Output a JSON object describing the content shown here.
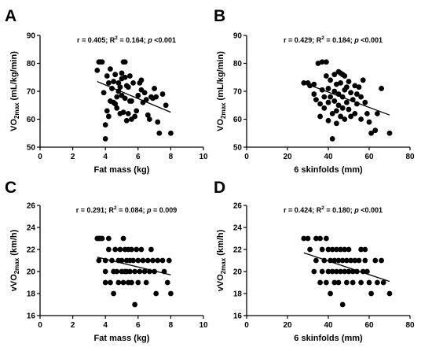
{
  "chart_data": [
    {
      "panel_label": "A",
      "type": "scatter",
      "xlabel": "Fat mass (kg)",
      "ylabel_main": "VO",
      "ylabel_sub": "2max",
      "ylabel_unit": " (mL/kg/min)",
      "annotation": {
        "r": "r = 0.405; R",
        "sup": "2",
        "mid": " = 0.164; ",
        "p": "p",
        "end": " <0.001"
      },
      "xlim": [
        0,
        10
      ],
      "ylim": [
        50,
        90
      ],
      "xticks": [
        "0",
        "2",
        "4",
        "6",
        "8",
        "10"
      ],
      "yticks": [
        "50",
        "60",
        "70",
        "80",
        "90"
      ],
      "trend_line": {
        "x": [
          3.5,
          8.0
        ],
        "y": [
          73.5,
          62.5
        ]
      },
      "points": [
        {
          "x": 3.5,
          "y": 77.5
        },
        {
          "x": 3.6,
          "y": 80.5
        },
        {
          "x": 3.7,
          "y": 80.5
        },
        {
          "x": 3.8,
          "y": 80.5
        },
        {
          "x": 3.9,
          "y": 69.5
        },
        {
          "x": 4.0,
          "y": 58.0
        },
        {
          "x": 4.0,
          "y": 53.0
        },
        {
          "x": 4.1,
          "y": 75.5
        },
        {
          "x": 4.1,
          "y": 63.0
        },
        {
          "x": 4.2,
          "y": 61.0
        },
        {
          "x": 4.2,
          "y": 73.0
        },
        {
          "x": 4.3,
          "y": 66.5
        },
        {
          "x": 4.3,
          "y": 78.0
        },
        {
          "x": 4.4,
          "y": 71.0
        },
        {
          "x": 4.5,
          "y": 73.5
        },
        {
          "x": 4.5,
          "y": 66.0
        },
        {
          "x": 4.6,
          "y": 65.5
        },
        {
          "x": 4.6,
          "y": 76.0
        },
        {
          "x": 4.7,
          "y": 68.0
        },
        {
          "x": 4.7,
          "y": 64.0
        },
        {
          "x": 4.8,
          "y": 70.0
        },
        {
          "x": 4.8,
          "y": 73.0
        },
        {
          "x": 4.9,
          "y": 71.5
        },
        {
          "x": 4.9,
          "y": 62.0
        },
        {
          "x": 5.0,
          "y": 74.5
        },
        {
          "x": 5.0,
          "y": 68.5
        },
        {
          "x": 5.0,
          "y": 76.5
        },
        {
          "x": 5.1,
          "y": 80.5
        },
        {
          "x": 5.1,
          "y": 62.5
        },
        {
          "x": 5.2,
          "y": 75.0
        },
        {
          "x": 5.2,
          "y": 67.5
        },
        {
          "x": 5.2,
          "y": 80.5
        },
        {
          "x": 5.3,
          "y": 72.0
        },
        {
          "x": 5.3,
          "y": 59.5
        },
        {
          "x": 5.4,
          "y": 71.5
        },
        {
          "x": 5.4,
          "y": 62.0
        },
        {
          "x": 5.5,
          "y": 75.5
        },
        {
          "x": 5.5,
          "y": 66.5
        },
        {
          "x": 5.6,
          "y": 66.5
        },
        {
          "x": 5.6,
          "y": 60.0
        },
        {
          "x": 5.7,
          "y": 73.0
        },
        {
          "x": 5.8,
          "y": 61.0
        },
        {
          "x": 5.9,
          "y": 63.0
        },
        {
          "x": 6.0,
          "y": 68.5
        },
        {
          "x": 6.1,
          "y": 73.0
        },
        {
          "x": 6.2,
          "y": 74.0
        },
        {
          "x": 6.2,
          "y": 70.5
        },
        {
          "x": 6.3,
          "y": 66.0
        },
        {
          "x": 6.4,
          "y": 69.5
        },
        {
          "x": 6.5,
          "y": 67.0
        },
        {
          "x": 6.6,
          "y": 61.5
        },
        {
          "x": 6.7,
          "y": 60.0
        },
        {
          "x": 6.8,
          "y": 68.0
        },
        {
          "x": 6.9,
          "y": 67.5
        },
        {
          "x": 7.0,
          "y": 71.0
        },
        {
          "x": 7.1,
          "y": 68.0
        },
        {
          "x": 7.2,
          "y": 59.0
        },
        {
          "x": 7.3,
          "y": 55.0
        },
        {
          "x": 7.5,
          "y": 69.0
        },
        {
          "x": 7.7,
          "y": 65.0
        },
        {
          "x": 8.0,
          "y": 55.0
        }
      ]
    },
    {
      "panel_label": "B",
      "type": "scatter",
      "xlabel": "6 skinfolds (mm)",
      "ylabel_main": "VO",
      "ylabel_sub": "2max",
      "ylabel_unit": " (mL/kg/min)",
      "annotation": {
        "r": "r = 0.429; R",
        "sup": "2",
        "mid": " = 0.184; ",
        "p": "p",
        "end": " <0.001"
      },
      "xlim": [
        0,
        80
      ],
      "ylim": [
        50,
        90
      ],
      "xticks": [
        "0",
        "20",
        "40",
        "60",
        "80"
      ],
      "yticks": [
        "50",
        "60",
        "70",
        "80",
        "90"
      ],
      "trend_line": {
        "x": [
          28,
          70
        ],
        "y": [
          73.0,
          61.5
        ]
      },
      "points": [
        {
          "x": 28,
          "y": 73.0
        },
        {
          "x": 30,
          "y": 73.0
        },
        {
          "x": 31,
          "y": 72.0
        },
        {
          "x": 33,
          "y": 69.0
        },
        {
          "x": 33,
          "y": 72.5
        },
        {
          "x": 34,
          "y": 67.0
        },
        {
          "x": 35,
          "y": 80.0
        },
        {
          "x": 36,
          "y": 65.5
        },
        {
          "x": 36,
          "y": 61.0
        },
        {
          "x": 37,
          "y": 80.5
        },
        {
          "x": 37,
          "y": 70.5
        },
        {
          "x": 38,
          "y": 68.0
        },
        {
          "x": 38,
          "y": 64.0
        },
        {
          "x": 39,
          "y": 80.5
        },
        {
          "x": 39,
          "y": 75.5
        },
        {
          "x": 40,
          "y": 71.0
        },
        {
          "x": 40,
          "y": 66.0
        },
        {
          "x": 40,
          "y": 59.5
        },
        {
          "x": 41,
          "y": 68.0
        },
        {
          "x": 41,
          "y": 74.0
        },
        {
          "x": 42,
          "y": 62.0
        },
        {
          "x": 42,
          "y": 53.0
        },
        {
          "x": 43,
          "y": 70.0
        },
        {
          "x": 43,
          "y": 76.0
        },
        {
          "x": 43,
          "y": 66.5
        },
        {
          "x": 44,
          "y": 72.5
        },
        {
          "x": 44,
          "y": 63.0
        },
        {
          "x": 44,
          "y": 58.5
        },
        {
          "x": 45,
          "y": 77.0
        },
        {
          "x": 45,
          "y": 69.0
        },
        {
          "x": 45,
          "y": 65.0
        },
        {
          "x": 46,
          "y": 73.0
        },
        {
          "x": 46,
          "y": 61.0
        },
        {
          "x": 46,
          "y": 76.5
        },
        {
          "x": 47,
          "y": 76.0
        },
        {
          "x": 47,
          "y": 68.0
        },
        {
          "x": 47,
          "y": 64.0
        },
        {
          "x": 48,
          "y": 75.5
        },
        {
          "x": 48,
          "y": 70.5
        },
        {
          "x": 48,
          "y": 60.0
        },
        {
          "x": 49,
          "y": 71.5
        },
        {
          "x": 49,
          "y": 66.0
        },
        {
          "x": 50,
          "y": 73.5
        },
        {
          "x": 50,
          "y": 63.5
        },
        {
          "x": 51,
          "y": 69.5
        },
        {
          "x": 51,
          "y": 61.0
        },
        {
          "x": 52,
          "y": 67.0
        },
        {
          "x": 53,
          "y": 72.0
        },
        {
          "x": 53,
          "y": 62.0
        },
        {
          "x": 54,
          "y": 69.0
        },
        {
          "x": 54,
          "y": 65.5
        },
        {
          "x": 55,
          "y": 71.5
        },
        {
          "x": 56,
          "y": 68.0
        },
        {
          "x": 56,
          "y": 60.0
        },
        {
          "x": 57,
          "y": 74.0
        },
        {
          "x": 58,
          "y": 66.0
        },
        {
          "x": 59,
          "y": 62.0
        },
        {
          "x": 60,
          "y": 59.0
        },
        {
          "x": 61,
          "y": 55.0
        },
        {
          "x": 63,
          "y": 56.0
        },
        {
          "x": 64,
          "y": 62.0
        },
        {
          "x": 66,
          "y": 71.0
        },
        {
          "x": 70,
          "y": 55.0
        }
      ]
    },
    {
      "panel_label": "C",
      "type": "scatter",
      "xlabel": "Fat mass (kg)",
      "ylabel_main": "vVO",
      "ylabel_sub": "2max",
      "ylabel_unit": " (km/h)",
      "annotation": {
        "r": "r = 0.291; R",
        "sup": "2",
        "mid": " = 0.084; ",
        "p": "p",
        "end": " = 0.009"
      },
      "xlim": [
        0,
        10
      ],
      "ylim": [
        16,
        26
      ],
      "xticks": [
        "0",
        "2",
        "4",
        "6",
        "8",
        "10"
      ],
      "yticks": [
        "16",
        "18",
        "20",
        "22",
        "24",
        "26"
      ],
      "trend_line": {
        "x": [
          3.5,
          8.0
        ],
        "y": [
          21.3,
          19.7
        ]
      },
      "points": [
        {
          "x": 3.5,
          "y": 23
        },
        {
          "x": 3.6,
          "y": 23
        },
        {
          "x": 3.7,
          "y": 23
        },
        {
          "x": 3.8,
          "y": 23
        },
        {
          "x": 3.6,
          "y": 21
        },
        {
          "x": 4.0,
          "y": 19
        },
        {
          "x": 4.0,
          "y": 21
        },
        {
          "x": 4.0,
          "y": 20
        },
        {
          "x": 4.2,
          "y": 23
        },
        {
          "x": 4.2,
          "y": 22
        },
        {
          "x": 4.3,
          "y": 19
        },
        {
          "x": 4.4,
          "y": 21
        },
        {
          "x": 4.5,
          "y": 20
        },
        {
          "x": 4.5,
          "y": 18
        },
        {
          "x": 4.6,
          "y": 22
        },
        {
          "x": 4.7,
          "y": 20
        },
        {
          "x": 4.8,
          "y": 21
        },
        {
          "x": 4.8,
          "y": 19
        },
        {
          "x": 4.9,
          "y": 22
        },
        {
          "x": 5.0,
          "y": 20
        },
        {
          "x": 5.0,
          "y": 21
        },
        {
          "x": 5.1,
          "y": 23
        },
        {
          "x": 5.1,
          "y": 19
        },
        {
          "x": 5.2,
          "y": 22
        },
        {
          "x": 5.2,
          "y": 20
        },
        {
          "x": 5.3,
          "y": 21
        },
        {
          "x": 5.3,
          "y": 20
        },
        {
          "x": 5.4,
          "y": 22
        },
        {
          "x": 5.4,
          "y": 19
        },
        {
          "x": 5.5,
          "y": 21
        },
        {
          "x": 5.5,
          "y": 20
        },
        {
          "x": 5.6,
          "y": 22
        },
        {
          "x": 5.6,
          "y": 19
        },
        {
          "x": 5.7,
          "y": 21
        },
        {
          "x": 5.8,
          "y": 20
        },
        {
          "x": 5.8,
          "y": 17
        },
        {
          "x": 5.9,
          "y": 22
        },
        {
          "x": 6.0,
          "y": 21
        },
        {
          "x": 6.0,
          "y": 19
        },
        {
          "x": 6.1,
          "y": 20
        },
        {
          "x": 6.2,
          "y": 22
        },
        {
          "x": 6.3,
          "y": 21
        },
        {
          "x": 6.4,
          "y": 20
        },
        {
          "x": 6.5,
          "y": 19
        },
        {
          "x": 6.6,
          "y": 21
        },
        {
          "x": 6.7,
          "y": 20
        },
        {
          "x": 6.8,
          "y": 22
        },
        {
          "x": 6.9,
          "y": 21
        },
        {
          "x": 7.0,
          "y": 20
        },
        {
          "x": 7.1,
          "y": 18
        },
        {
          "x": 7.2,
          "y": 21
        },
        {
          "x": 7.5,
          "y": 21
        },
        {
          "x": 7.6,
          "y": 20
        },
        {
          "x": 7.8,
          "y": 19
        },
        {
          "x": 8.0,
          "y": 18
        },
        {
          "x": 7.9,
          "y": 21
        }
      ]
    },
    {
      "panel_label": "D",
      "type": "scatter",
      "xlabel": "6 skinfolds (mm)",
      "ylabel_main": "vVO",
      "ylabel_sub": "2max",
      "ylabel_unit": " (km/h)",
      "annotation": {
        "r": "r = 0.424; R",
        "sup": "2",
        "mid": " = 0.180; ",
        "p": "p",
        "end": " <0.001"
      },
      "xlim": [
        0,
        80
      ],
      "ylim": [
        16,
        26
      ],
      "xticks": [
        "0",
        "20",
        "40",
        "60",
        "80"
      ],
      "yticks": [
        "16",
        "18",
        "20",
        "22",
        "24",
        "26"
      ],
      "trend_line": {
        "x": [
          28,
          70
        ],
        "y": [
          21.7,
          19.1
        ]
      },
      "points": [
        {
          "x": 28,
          "y": 23
        },
        {
          "x": 30,
          "y": 23
        },
        {
          "x": 31,
          "y": 22
        },
        {
          "x": 33,
          "y": 20
        },
        {
          "x": 34,
          "y": 23
        },
        {
          "x": 34,
          "y": 21
        },
        {
          "x": 36,
          "y": 23
        },
        {
          "x": 36,
          "y": 19
        },
        {
          "x": 37,
          "y": 22
        },
        {
          "x": 37,
          "y": 20
        },
        {
          "x": 38,
          "y": 21
        },
        {
          "x": 39,
          "y": 23
        },
        {
          "x": 39,
          "y": 19
        },
        {
          "x": 40,
          "y": 22
        },
        {
          "x": 40,
          "y": 20
        },
        {
          "x": 41,
          "y": 21
        },
        {
          "x": 41,
          "y": 18
        },
        {
          "x": 42,
          "y": 22
        },
        {
          "x": 42,
          "y": 20
        },
        {
          "x": 43,
          "y": 21
        },
        {
          "x": 43,
          "y": 19
        },
        {
          "x": 44,
          "y": 22
        },
        {
          "x": 44,
          "y": 20
        },
        {
          "x": 45,
          "y": 21
        },
        {
          "x": 45,
          "y": 19
        },
        {
          "x": 46,
          "y": 22
        },
        {
          "x": 46,
          "y": 20
        },
        {
          "x": 47,
          "y": 21
        },
        {
          "x": 47,
          "y": 17
        },
        {
          "x": 48,
          "y": 22
        },
        {
          "x": 48,
          "y": 20
        },
        {
          "x": 49,
          "y": 21
        },
        {
          "x": 49,
          "y": 19
        },
        {
          "x": 50,
          "y": 22
        },
        {
          "x": 50,
          "y": 20
        },
        {
          "x": 51,
          "y": 21
        },
        {
          "x": 52,
          "y": 20
        },
        {
          "x": 52,
          "y": 19
        },
        {
          "x": 53,
          "y": 21
        },
        {
          "x": 54,
          "y": 20
        },
        {
          "x": 55,
          "y": 21
        },
        {
          "x": 56,
          "y": 22
        },
        {
          "x": 56,
          "y": 19
        },
        {
          "x": 57,
          "y": 20
        },
        {
          "x": 58,
          "y": 22
        },
        {
          "x": 58,
          "y": 21
        },
        {
          "x": 59,
          "y": 20
        },
        {
          "x": 60,
          "y": 19
        },
        {
          "x": 61,
          "y": 18
        },
        {
          "x": 63,
          "y": 21
        },
        {
          "x": 64,
          "y": 19
        },
        {
          "x": 66,
          "y": 21
        },
        {
          "x": 67,
          "y": 19
        },
        {
          "x": 70,
          "y": 18
        }
      ]
    }
  ]
}
